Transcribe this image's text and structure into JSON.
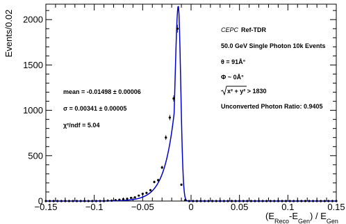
{
  "chart_data": {
    "type": "scatter",
    "xlabel": {
      "main": "(E",
      "sub1": "Reco",
      "mid": "-E",
      "sub2": "Gen",
      "tail": ") / E",
      "sub3": "Gen"
    },
    "ylabel": "Events/0.02",
    "xlim": [
      -0.15,
      0.15
    ],
    "ylim": [
      0,
      2170
    ],
    "x_ticks": [
      -0.15,
      -0.1,
      -0.05,
      0,
      0.05,
      0.1,
      0.15
    ],
    "x_tick_labels": [
      "−0.15",
      "−0.1",
      "−0.05",
      "0",
      "0.05",
      "0.1",
      "0.15"
    ],
    "y_ticks": [
      0,
      500,
      1000,
      1500,
      2000
    ],
    "y_tick_labels": [
      "0",
      "500",
      "1000",
      "1500",
      "2000"
    ],
    "series": [
      {
        "kind": "data-points",
        "color": "#000000",
        "x": [
          -0.15,
          -0.146,
          -0.142,
          -0.138,
          -0.134,
          -0.13,
          -0.126,
          -0.122,
          -0.118,
          -0.114,
          -0.11,
          -0.106,
          -0.102,
          -0.098,
          -0.094,
          -0.09,
          -0.086,
          -0.082,
          -0.078,
          -0.074,
          -0.07,
          -0.066,
          -0.062,
          -0.058,
          -0.054,
          -0.05,
          -0.046,
          -0.042,
          -0.038,
          -0.034,
          -0.03,
          -0.026,
          -0.022,
          -0.018,
          -0.014,
          -0.01,
          -0.006,
          -0.002,
          0.002,
          0.006,
          0.01,
          0.014,
          0.018,
          0.022,
          0.026,
          0.03,
          0.034,
          0.038,
          0.042,
          0.046,
          0.05,
          0.054,
          0.058,
          0.062,
          0.066,
          0.07,
          0.074,
          0.078,
          0.082,
          0.086,
          0.09,
          0.094,
          0.098,
          0.102,
          0.106,
          0.11,
          0.114,
          0.118,
          0.122,
          0.126,
          0.13,
          0.134,
          0.138,
          0.142,
          0.146,
          0.15
        ],
        "y": [
          0,
          0,
          0,
          0,
          0,
          0,
          0,
          0,
          0,
          0,
          0,
          0,
          0,
          0,
          0,
          0,
          5,
          5,
          10,
          15,
          20,
          25,
          35,
          40,
          60,
          80,
          90,
          120,
          210,
          230,
          370,
          700,
          920,
          1130,
          1900,
          180,
          10,
          0,
          0,
          0,
          0,
          0,
          0,
          0,
          0,
          0,
          0,
          0,
          0,
          0,
          0,
          0,
          0,
          0,
          0,
          0,
          0,
          0,
          0,
          0,
          0,
          0,
          0,
          0,
          0,
          0,
          0,
          0,
          0,
          0,
          0,
          0,
          0,
          0,
          0,
          0
        ]
      },
      {
        "kind": "fit",
        "color": "#0000cc",
        "peak_x": -0.0132,
        "peak_y": 2150,
        "sigma_right": 0.0025,
        "sigma_left": 0.0034,
        "tail_start": -0.0175,
        "tail_length": 0.0105
      }
    ],
    "stats_box": [
      "mean = -0.01498  ± 0.00006",
      "σ = 0.00341 ± 0.00005",
      "χ²/ndf = 5.04"
    ],
    "info_box": {
      "experiment_italic": "CEPC",
      "experiment_bold": "Ref-TDR",
      "lines": [
        "50.0 GeV Single Photon 10k Events",
        "θ = 91Å°",
        "Φ ~ 0Å°",
        "x² + y² > 1830",
        "Unconverted Photon Ratio: 0.9405"
      ]
    }
  }
}
